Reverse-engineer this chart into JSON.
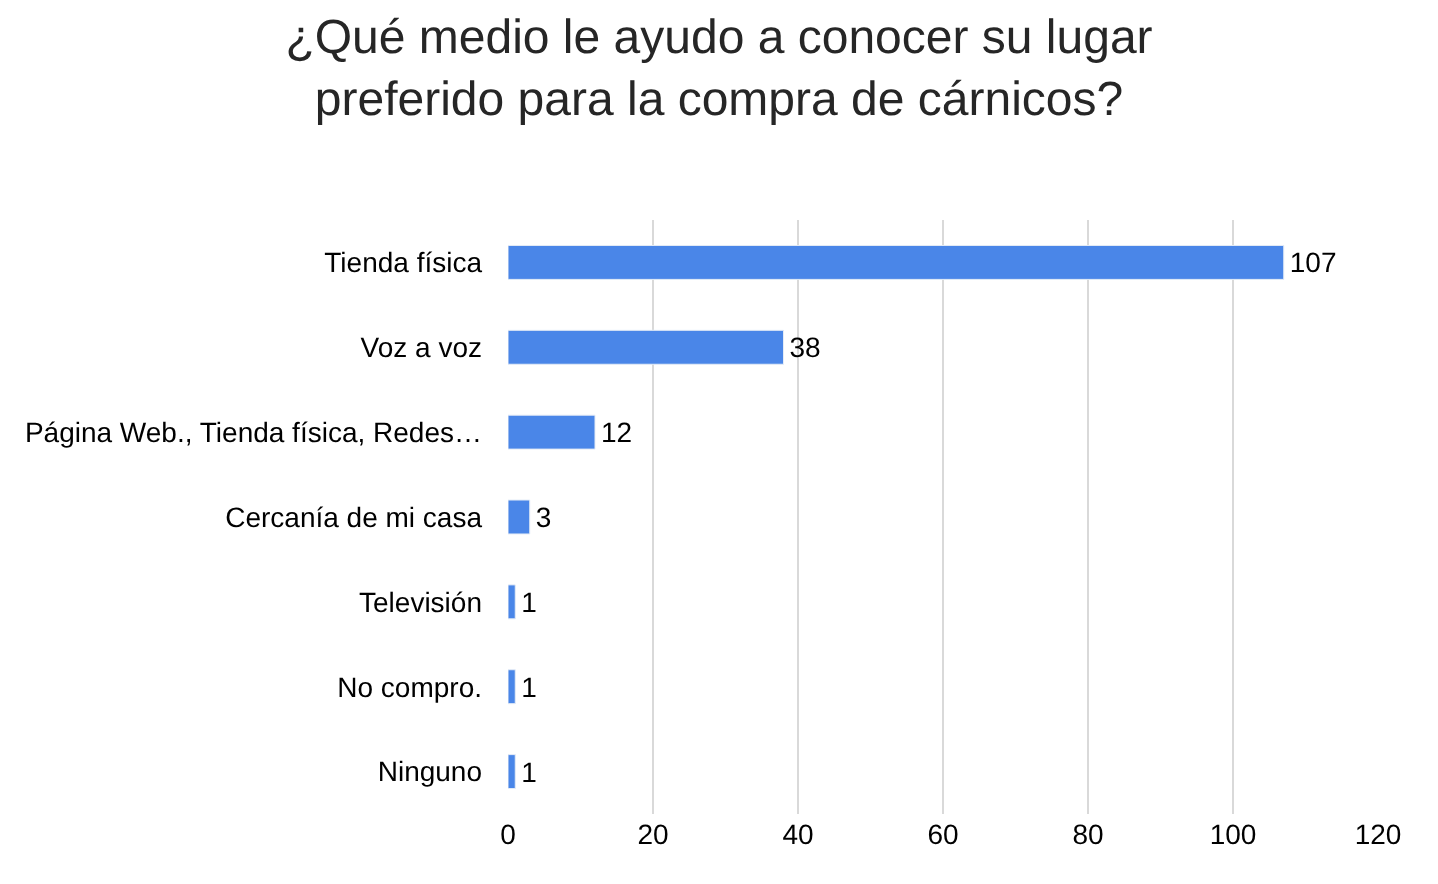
{
  "chart_data": {
    "type": "bar",
    "orientation": "horizontal",
    "title": "¿Qué medio le ayudo a conocer su lugar\npreferido para la compra de cárnicos?",
    "categories": [
      "Tienda física",
      "Voz a voz",
      "Página Web., Tienda física, Redes…",
      "Cercanía de mi casa",
      "Televisión",
      "No compro.",
      "Ninguno"
    ],
    "values": [
      107,
      38,
      12,
      3,
      1,
      1,
      1
    ],
    "color": "#4a86e8",
    "xlim": [
      0,
      120
    ],
    "xticks": [
      0,
      20,
      40,
      60,
      80,
      100,
      120
    ],
    "grid": "x",
    "data_labels": true
  }
}
